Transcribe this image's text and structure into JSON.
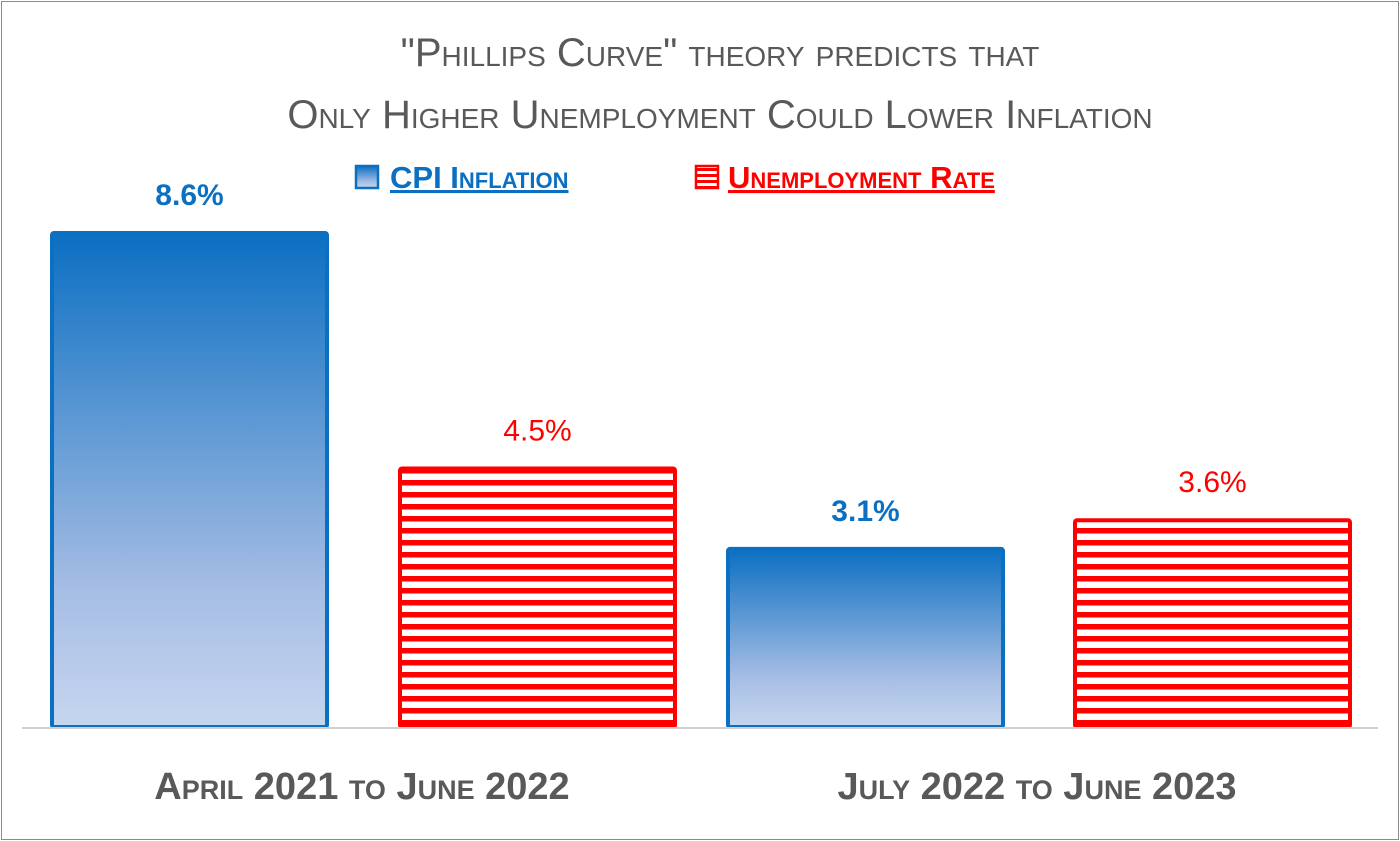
{
  "chart_data": {
    "type": "bar",
    "title_lines": [
      "\"Phillips Curve\" theory predicts that",
      "Only Higher Unemployment Could Lower Inflation"
    ],
    "categories": [
      "April 2021 to June 2022",
      "July 2022 to June 2023"
    ],
    "series": [
      {
        "name": "CPI Inflation",
        "values": [
          8.6,
          3.1
        ],
        "labels": [
          "8.6%",
          "3.1%"
        ],
        "color": "#0b6fc2",
        "style": "gradient"
      },
      {
        "name": "Unemployment Rate",
        "values": [
          4.5,
          3.6
        ],
        "labels": [
          "4.5%",
          "3.6%"
        ],
        "color": "#ff0000",
        "style": "horizontal-stripes"
      }
    ],
    "ylim": [
      0,
      8.6
    ],
    "legend_position": "top-center",
    "grid": false
  }
}
